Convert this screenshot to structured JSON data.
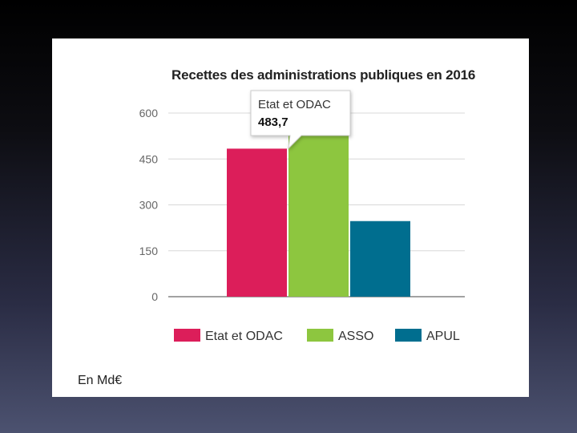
{
  "chart_data": {
    "type": "bar",
    "title": "Recettes des administrations publiques en 2016",
    "unit_label": "En Md€",
    "ylim": [
      0,
      600
    ],
    "yticks": [
      0,
      150,
      300,
      450,
      600
    ],
    "yticks_labels": [
      "0",
      "150",
      "300",
      "450",
      "600"
    ],
    "grid": true,
    "legend_position": "bottom",
    "series": [
      {
        "name": "Etat et ODAC",
        "value": 483.7,
        "color": "#dc1e5a"
      },
      {
        "name": "ASSO",
        "value": 560,
        "color": "#8dc63f"
      },
      {
        "name": "APUL",
        "value": 247,
        "color": "#006e8f"
      }
    ],
    "tooltip": {
      "label": "Etat et ODAC",
      "value": "483,7"
    }
  }
}
